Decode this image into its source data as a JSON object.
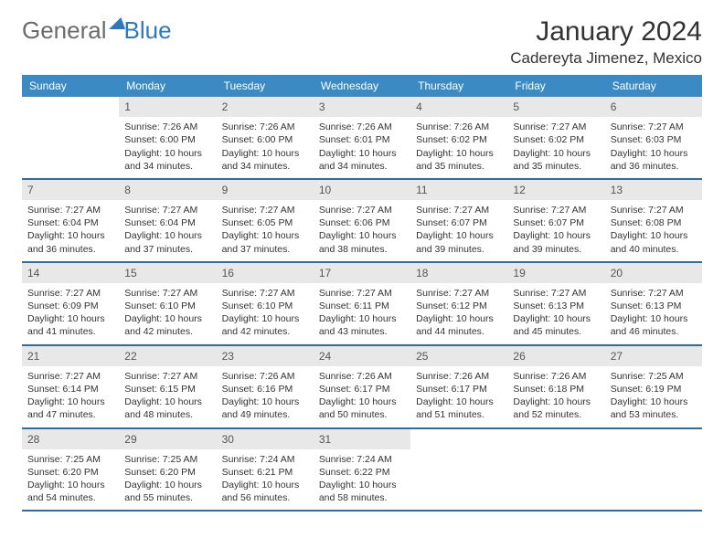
{
  "logo": {
    "word1": "General",
    "word2": "Blue"
  },
  "title": "January 2024",
  "location": "Cadereyta Jimenez, Mexico",
  "colors": {
    "header_bg": "#3b8ac4",
    "header_fg": "#ffffff",
    "week_border": "#2e6da4",
    "daynum_bg": "#e8e8e8",
    "logo_gray": "#6b6b6b",
    "logo_blue": "#2e78bd"
  },
  "day_names": [
    "Sunday",
    "Monday",
    "Tuesday",
    "Wednesday",
    "Thursday",
    "Friday",
    "Saturday"
  ],
  "weeks": [
    [
      {
        "n": "",
        "lines": []
      },
      {
        "n": "1",
        "lines": [
          "Sunrise: 7:26 AM",
          "Sunset: 6:00 PM",
          "Daylight: 10 hours",
          "and 34 minutes."
        ]
      },
      {
        "n": "2",
        "lines": [
          "Sunrise: 7:26 AM",
          "Sunset: 6:00 PM",
          "Daylight: 10 hours",
          "and 34 minutes."
        ]
      },
      {
        "n": "3",
        "lines": [
          "Sunrise: 7:26 AM",
          "Sunset: 6:01 PM",
          "Daylight: 10 hours",
          "and 34 minutes."
        ]
      },
      {
        "n": "4",
        "lines": [
          "Sunrise: 7:26 AM",
          "Sunset: 6:02 PM",
          "Daylight: 10 hours",
          "and 35 minutes."
        ]
      },
      {
        "n": "5",
        "lines": [
          "Sunrise: 7:27 AM",
          "Sunset: 6:02 PM",
          "Daylight: 10 hours",
          "and 35 minutes."
        ]
      },
      {
        "n": "6",
        "lines": [
          "Sunrise: 7:27 AM",
          "Sunset: 6:03 PM",
          "Daylight: 10 hours",
          "and 36 minutes."
        ]
      }
    ],
    [
      {
        "n": "7",
        "lines": [
          "Sunrise: 7:27 AM",
          "Sunset: 6:04 PM",
          "Daylight: 10 hours",
          "and 36 minutes."
        ]
      },
      {
        "n": "8",
        "lines": [
          "Sunrise: 7:27 AM",
          "Sunset: 6:04 PM",
          "Daylight: 10 hours",
          "and 37 minutes."
        ]
      },
      {
        "n": "9",
        "lines": [
          "Sunrise: 7:27 AM",
          "Sunset: 6:05 PM",
          "Daylight: 10 hours",
          "and 37 minutes."
        ]
      },
      {
        "n": "10",
        "lines": [
          "Sunrise: 7:27 AM",
          "Sunset: 6:06 PM",
          "Daylight: 10 hours",
          "and 38 minutes."
        ]
      },
      {
        "n": "11",
        "lines": [
          "Sunrise: 7:27 AM",
          "Sunset: 6:07 PM",
          "Daylight: 10 hours",
          "and 39 minutes."
        ]
      },
      {
        "n": "12",
        "lines": [
          "Sunrise: 7:27 AM",
          "Sunset: 6:07 PM",
          "Daylight: 10 hours",
          "and 39 minutes."
        ]
      },
      {
        "n": "13",
        "lines": [
          "Sunrise: 7:27 AM",
          "Sunset: 6:08 PM",
          "Daylight: 10 hours",
          "and 40 minutes."
        ]
      }
    ],
    [
      {
        "n": "14",
        "lines": [
          "Sunrise: 7:27 AM",
          "Sunset: 6:09 PM",
          "Daylight: 10 hours",
          "and 41 minutes."
        ]
      },
      {
        "n": "15",
        "lines": [
          "Sunrise: 7:27 AM",
          "Sunset: 6:10 PM",
          "Daylight: 10 hours",
          "and 42 minutes."
        ]
      },
      {
        "n": "16",
        "lines": [
          "Sunrise: 7:27 AM",
          "Sunset: 6:10 PM",
          "Daylight: 10 hours",
          "and 42 minutes."
        ]
      },
      {
        "n": "17",
        "lines": [
          "Sunrise: 7:27 AM",
          "Sunset: 6:11 PM",
          "Daylight: 10 hours",
          "and 43 minutes."
        ]
      },
      {
        "n": "18",
        "lines": [
          "Sunrise: 7:27 AM",
          "Sunset: 6:12 PM",
          "Daylight: 10 hours",
          "and 44 minutes."
        ]
      },
      {
        "n": "19",
        "lines": [
          "Sunrise: 7:27 AM",
          "Sunset: 6:13 PM",
          "Daylight: 10 hours",
          "and 45 minutes."
        ]
      },
      {
        "n": "20",
        "lines": [
          "Sunrise: 7:27 AM",
          "Sunset: 6:13 PM",
          "Daylight: 10 hours",
          "and 46 minutes."
        ]
      }
    ],
    [
      {
        "n": "21",
        "lines": [
          "Sunrise: 7:27 AM",
          "Sunset: 6:14 PM",
          "Daylight: 10 hours",
          "and 47 minutes."
        ]
      },
      {
        "n": "22",
        "lines": [
          "Sunrise: 7:27 AM",
          "Sunset: 6:15 PM",
          "Daylight: 10 hours",
          "and 48 minutes."
        ]
      },
      {
        "n": "23",
        "lines": [
          "Sunrise: 7:26 AM",
          "Sunset: 6:16 PM",
          "Daylight: 10 hours",
          "and 49 minutes."
        ]
      },
      {
        "n": "24",
        "lines": [
          "Sunrise: 7:26 AM",
          "Sunset: 6:17 PM",
          "Daylight: 10 hours",
          "and 50 minutes."
        ]
      },
      {
        "n": "25",
        "lines": [
          "Sunrise: 7:26 AM",
          "Sunset: 6:17 PM",
          "Daylight: 10 hours",
          "and 51 minutes."
        ]
      },
      {
        "n": "26",
        "lines": [
          "Sunrise: 7:26 AM",
          "Sunset: 6:18 PM",
          "Daylight: 10 hours",
          "and 52 minutes."
        ]
      },
      {
        "n": "27",
        "lines": [
          "Sunrise: 7:25 AM",
          "Sunset: 6:19 PM",
          "Daylight: 10 hours",
          "and 53 minutes."
        ]
      }
    ],
    [
      {
        "n": "28",
        "lines": [
          "Sunrise: 7:25 AM",
          "Sunset: 6:20 PM",
          "Daylight: 10 hours",
          "and 54 minutes."
        ]
      },
      {
        "n": "29",
        "lines": [
          "Sunrise: 7:25 AM",
          "Sunset: 6:20 PM",
          "Daylight: 10 hours",
          "and 55 minutes."
        ]
      },
      {
        "n": "30",
        "lines": [
          "Sunrise: 7:24 AM",
          "Sunset: 6:21 PM",
          "Daylight: 10 hours",
          "and 56 minutes."
        ]
      },
      {
        "n": "31",
        "lines": [
          "Sunrise: 7:24 AM",
          "Sunset: 6:22 PM",
          "Daylight: 10 hours",
          "and 58 minutes."
        ]
      },
      {
        "n": "",
        "lines": []
      },
      {
        "n": "",
        "lines": []
      },
      {
        "n": "",
        "lines": []
      }
    ]
  ]
}
